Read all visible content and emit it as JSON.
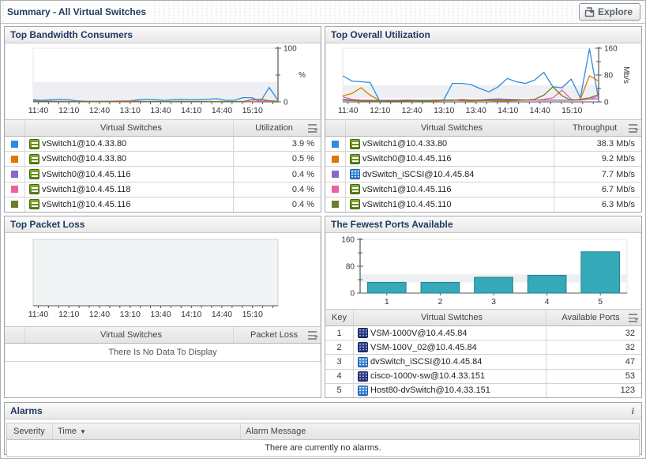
{
  "page": {
    "title": "Summary - All Virtual Switches",
    "explore_label": "Explore"
  },
  "icons": {
    "sort_desc": "▼",
    "info": "i"
  },
  "panels": {
    "bandwidth": {
      "title": "Top Bandwidth Consumers",
      "table": {
        "headers": [
          "Virtual Switches",
          "Utilization"
        ],
        "rows": [
          {
            "color": "#2E8CE0",
            "icon": "vswitch-icon",
            "name": "vSwitch1@10.4.33.80",
            "value": "3.9 %"
          },
          {
            "color": "#E07800",
            "icon": "vswitch-icon",
            "name": "vSwitch0@10.4.33.80",
            "value": "0.5 %"
          },
          {
            "color": "#8A66CC",
            "icon": "vswitch-icon",
            "name": "vSwitch0@10.4.45.116",
            "value": "0.4 %"
          },
          {
            "color": "#EF5FA0",
            "icon": "vswitch-icon",
            "name": "vSwitch1@10.4.45.118",
            "value": "0.4 %"
          },
          {
            "color": "#6E7D2B",
            "icon": "vswitch-icon",
            "name": "vSwitch1@10.4.45.116",
            "value": "0.4 %"
          }
        ]
      }
    },
    "utilization": {
      "title": "Top Overall Utilization",
      "table": {
        "headers": [
          "Virtual Switches",
          "Throughput"
        ],
        "rows": [
          {
            "color": "#2E8CE0",
            "icon": "vswitch-icon",
            "name": "vSwitch1@10.4.33.80",
            "value": "38.3 Mb/s"
          },
          {
            "color": "#E07800",
            "icon": "vswitch-icon",
            "name": "vSwitch0@10.4.45.116",
            "value": "9.2 Mb/s"
          },
          {
            "color": "#8A66CC",
            "icon": "dvswitch-icon",
            "name": "dvSwitch_iSCSI@10.4.45.84",
            "value": "7.7 Mb/s"
          },
          {
            "color": "#EF5FA0",
            "icon": "vswitch-icon",
            "name": "vSwitch1@10.4.45.116",
            "value": "6.7 Mb/s"
          },
          {
            "color": "#6E7D2B",
            "icon": "vswitch-icon",
            "name": "vSwitch1@10.4.45.110",
            "value": "6.3 Mb/s"
          }
        ]
      }
    },
    "packetloss": {
      "title": "Top Packet Loss",
      "table": {
        "headers": [
          "Virtual Switches",
          "Packet Loss"
        ],
        "empty_message": "There Is No Data To Display"
      }
    },
    "ports": {
      "title": "The Fewest Ports Available",
      "table": {
        "headers": [
          "Key",
          "Virtual Switches",
          "Available Ports"
        ],
        "rows": [
          {
            "key": "1",
            "icon": "vsm-icon",
            "name": "VSM-1000V@10.4.45.84",
            "value": "32"
          },
          {
            "key": "2",
            "icon": "vsm-icon",
            "name": "VSM-100V_02@10.4.45.84",
            "value": "32"
          },
          {
            "key": "3",
            "icon": "dvswitch-icon",
            "name": "dvSwitch_iSCSI@10.4.45.84",
            "value": "47"
          },
          {
            "key": "4",
            "icon": "vsm-icon",
            "name": "cisco-1000v-sw@10.4.33.151",
            "value": "53"
          },
          {
            "key": "5",
            "icon": "dvswitch-icon",
            "name": "Host80-dvSwitch@10.4.33.151",
            "value": "123"
          }
        ]
      }
    },
    "alarms": {
      "title": "Alarms",
      "headers": [
        "Severity",
        "Time",
        "Alarm Message"
      ],
      "empty_message": "There are currently no alarms."
    }
  },
  "chart_data": [
    {
      "id": "bandwidth",
      "type": "line",
      "title": "Top Bandwidth Consumers",
      "ylabel": "%",
      "ylim": [
        0,
        100
      ],
      "yticks": [
        0,
        100
      ],
      "yticks_minor": [
        50
      ],
      "axis_side": "right",
      "band": [
        0,
        37
      ],
      "grid": false,
      "legend_position": "table-below",
      "x_labels": [
        "11:40",
        "12:10",
        "12:40",
        "13:10",
        "13:40",
        "14:10",
        "14:40",
        "15:10"
      ],
      "series": [
        {
          "name": "vSwitch1@10.4.33.80",
          "color": "#2E8CE0",
          "values": [
            4,
            3,
            4,
            5,
            4,
            2,
            1,
            1,
            1,
            1,
            1,
            2,
            4,
            5,
            4,
            3,
            4,
            5,
            4,
            4,
            5,
            6,
            3,
            3,
            8,
            8,
            1,
            27,
            3
          ]
        },
        {
          "name": "vSwitch0@10.4.33.80",
          "color": "#E07800",
          "values": [
            1,
            0.8,
            0.6,
            0.6,
            0.5,
            0.5,
            0.5,
            0.5,
            0.5,
            0.5,
            0.5,
            0.5,
            0.6,
            0.5,
            0.5,
            0.5,
            0.5,
            0.6,
            0.5,
            0.5,
            0.5,
            0.5,
            0.6,
            0.5,
            0.5,
            0.5,
            1,
            2,
            1
          ]
        },
        {
          "name": "vSwitch0@10.4.45.116",
          "color": "#8A66CC",
          "values": [
            2,
            1.5,
            1.2,
            1,
            0.8,
            0.8,
            0.8,
            0.8,
            0.8,
            0.8,
            0.8,
            0.8,
            0.8,
            0.8,
            0.8,
            0.8,
            0.8,
            1,
            0.8,
            0.8,
            0.8,
            0.8,
            0.8,
            0.8,
            0.8,
            0.8,
            0.8,
            1,
            1
          ]
        },
        {
          "name": "vSwitch1@10.4.45.118",
          "color": "#EF5FA0",
          "values": [
            1,
            0.8,
            0.7,
            0.7,
            0.6,
            0.6,
            0.6,
            0.6,
            0.6,
            1.5,
            1.8,
            1.8,
            1.5,
            0.6,
            0.6,
            0.6,
            0.6,
            0.6,
            0.6,
            0.6,
            0.6,
            0.6,
            0.6,
            0.6,
            0.6,
            0.6,
            1.5,
            1,
            1
          ]
        },
        {
          "name": "vSwitch1@10.4.45.116",
          "color": "#6E7D2B",
          "values": [
            0.4,
            0.4,
            0.4,
            0.4,
            0.4,
            0.4,
            0.4,
            0.4,
            0.4,
            0.4,
            0.4,
            0.4,
            0.4,
            0.4,
            0.4,
            0.4,
            0.4,
            0.4,
            0.4,
            0.4,
            0.4,
            0.4,
            0.4,
            0.4,
            0.4,
            4,
            5,
            2,
            1
          ]
        }
      ]
    },
    {
      "id": "utilization",
      "type": "line",
      "title": "Top Overall Utilization",
      "ylabel": "Mb/s",
      "ylim": [
        0,
        160
      ],
      "yticks": [
        0,
        80,
        160
      ],
      "yticks_minor": [
        40,
        120
      ],
      "axis_side": "right",
      "band": [
        12,
        50
      ],
      "grid": false,
      "legend_position": "table-below",
      "x_labels": [
        "11:40",
        "12:10",
        "12:40",
        "13:10",
        "13:40",
        "14:10",
        "14:40",
        "15:10"
      ],
      "series": [
        {
          "name": "vSwitch1@10.4.33.80",
          "color": "#2E8CE0",
          "values": [
            78,
            62,
            60,
            58,
            5,
            3,
            3,
            3,
            3,
            3,
            3,
            4,
            55,
            55,
            52,
            40,
            30,
            45,
            70,
            60,
            55,
            65,
            88,
            45,
            42,
            68,
            12,
            158,
            8
          ]
        },
        {
          "name": "vSwitch0@10.4.45.116",
          "color": "#E07800",
          "values": [
            18,
            25,
            42,
            20,
            5,
            3,
            3,
            3,
            4,
            3,
            3,
            4,
            5,
            4,
            3,
            4,
            4,
            3,
            3,
            4,
            5,
            5,
            6,
            5,
            6,
            5,
            8,
            78,
            62
          ]
        },
        {
          "name": "dvSwitch_iSCSI@10.4.45.84",
          "color": "#8A66CC",
          "values": [
            8,
            6,
            5,
            5,
            5,
            5,
            5,
            6,
            5,
            5,
            5,
            6,
            6,
            5,
            6,
            6,
            8,
            9,
            8,
            7,
            6,
            5,
            5,
            6,
            5,
            5,
            6,
            8,
            10
          ]
        },
        {
          "name": "vSwitch1@10.4.45.116",
          "color": "#EF5FA0",
          "values": [
            15,
            8,
            6,
            5,
            4,
            4,
            4,
            5,
            4,
            4,
            5,
            5,
            4,
            8,
            6,
            5,
            6,
            5,
            5,
            5,
            6,
            5,
            8,
            12,
            35,
            8,
            5,
            8,
            18
          ]
        },
        {
          "name": "vSwitch1@10.4.45.110",
          "color": "#6E7D2B",
          "values": [
            5,
            4,
            3,
            3,
            3,
            3,
            3,
            4,
            4,
            4,
            5,
            5,
            6,
            5,
            5,
            5,
            5,
            5,
            5,
            6,
            6,
            8,
            20,
            45,
            18,
            5,
            8,
            12,
            22
          ]
        }
      ]
    },
    {
      "id": "packetloss",
      "type": "line",
      "title": "Top Packet Loss",
      "ylabel": "",
      "ylim": [
        0,
        100
      ],
      "yticks": [],
      "yticks_minor": [],
      "axis_side": "none",
      "empty": true,
      "grid": false,
      "x_labels": [
        "11:40",
        "12:10",
        "12:40",
        "13:10",
        "13:40",
        "14:10",
        "14:40",
        "15:10"
      ],
      "series": []
    },
    {
      "id": "ports",
      "type": "bar",
      "title": "The Fewest Ports Available",
      "ylabel": "",
      "ylim": [
        0,
        160
      ],
      "yticks": [
        0,
        80,
        160
      ],
      "yticks_minor": [
        40,
        120
      ],
      "axis_side": "left",
      "band": [
        32,
        56
      ],
      "grid": false,
      "categories": [
        "1",
        "2",
        "3",
        "4",
        "5"
      ],
      "values": [
        32,
        32,
        47,
        53,
        123
      ],
      "bar_color": "#35A9B7",
      "bar_border": "#23828F"
    }
  ]
}
